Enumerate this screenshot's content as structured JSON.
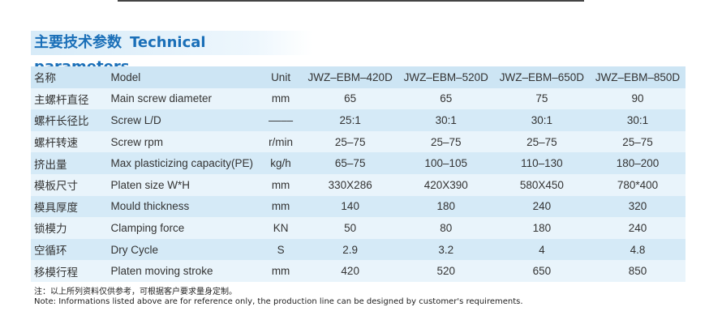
{
  "header": {
    "title_cn": "主要技术参数",
    "title_en": "Technical parameters"
  },
  "table": {
    "columns": [
      "名称",
      "Model",
      "Unit",
      "JWZ–EBM–420D",
      "JWZ–EBM–520D",
      "JWZ–EBM–650D",
      "JWZ–EBM–850D"
    ],
    "rows": [
      [
        "主螺杆直径",
        "Main screw diameter",
        "mm",
        "65",
        "65",
        "75",
        "90"
      ],
      [
        "螺杆长径比",
        "Screw L/D",
        "––––",
        "25:1",
        "30:1",
        "30:1",
        "30:1"
      ],
      [
        "螺杆转速",
        "Screw rpm",
        "r/min",
        "25–75",
        "25–75",
        "25–75",
        "25–75"
      ],
      [
        "挤出量",
        "Max plasticizing capacity(PE)",
        "kg/h",
        "65–75",
        "100–105",
        "110–130",
        "180–200"
      ],
      [
        "模板尺寸",
        "Platen size W*H",
        "mm",
        "330X286",
        "420X390",
        "580X450",
        "780*400"
      ],
      [
        "模具厚度",
        "Mould thickness",
        "mm",
        "140",
        "180",
        "240",
        "320"
      ],
      [
        "锁模力",
        "Clamping force",
        "KN",
        "50",
        "80",
        "180",
        "240"
      ],
      [
        "空循环",
        "Dry Cycle",
        "S",
        "2.9",
        "3.2",
        "4",
        "4.8"
      ],
      [
        "移模行程",
        "Platen moving stroke",
        "mm",
        "420",
        "520",
        "650",
        "850"
      ]
    ]
  },
  "notes": [
    "注：以上所列资料仅供参考，可根据客户要求量身定制。",
    "Note: Informations listed above are for reference only, the production line can be designed by customer's requirements."
  ]
}
